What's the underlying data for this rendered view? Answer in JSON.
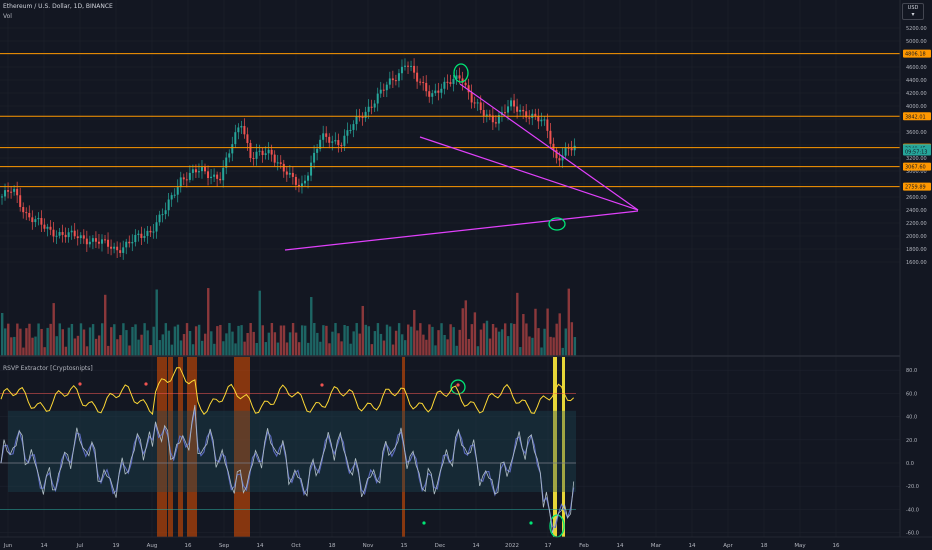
{
  "header": {
    "symbol": "Ethereum / U.S. Dollar, 1D, BINANCE",
    "volume_label": "Vol",
    "currency": "USD",
    "currency_arrow": "▾"
  },
  "indicator": {
    "name": "RSVP Extractor [Cryptosnipts]"
  },
  "colors": {
    "background": "#131722",
    "grid": "#1e222d",
    "up": "#26a69a",
    "down": "#ef5350",
    "horizontal_line": "#ff9800",
    "trendline": "#e040fb",
    "annotation": "#00e676",
    "highlight_yellow": "#ffeb3b",
    "band_orange": "#e65100"
  },
  "price_axis": {
    "ticks": [
      "5200.00",
      "5000.00",
      "4600.00",
      "4400.00",
      "4200.00",
      "4000.00",
      "3600.00",
      "3200.00",
      "3000.00",
      "2600.00",
      "2400.00",
      "2200.00",
      "2000.00",
      "1800.00",
      "1600.00"
    ],
    "tags": [
      {
        "label": "4806.18",
        "color": "#ff9800",
        "price": 4806.18
      },
      {
        "label": "3842.01",
        "color": "#ff9800",
        "price": 3842.01
      },
      {
        "label": "3359.92",
        "color": "#ff9800",
        "price": 3359.92
      },
      {
        "label": "3349.45",
        "color": "#26a69a",
        "price": 3349.45
      },
      {
        "label": "09:57:13",
        "color": "#26a69a",
        "price": 3300
      },
      {
        "label": "3067.60",
        "color": "#ff9800",
        "price": 3067.6
      },
      {
        "label": "2759.89",
        "color": "#ff9800",
        "price": 2759.89
      }
    ]
  },
  "osc_axis": {
    "ticks": [
      "80.0",
      "60.0",
      "40.0",
      "20.0",
      "0.0",
      "-20.0",
      "-40.0",
      "-60.0"
    ]
  },
  "time_axis": {
    "labels": [
      "Jun",
      "14",
      "Jul",
      "19",
      "Aug",
      "16",
      "Sep",
      "14",
      "Oct",
      "18",
      "Nov",
      "15",
      "Dec",
      "14",
      "2022",
      "17",
      "Feb",
      "14",
      "Mar",
      "14",
      "Apr",
      "18",
      "May",
      "16"
    ]
  }
}
